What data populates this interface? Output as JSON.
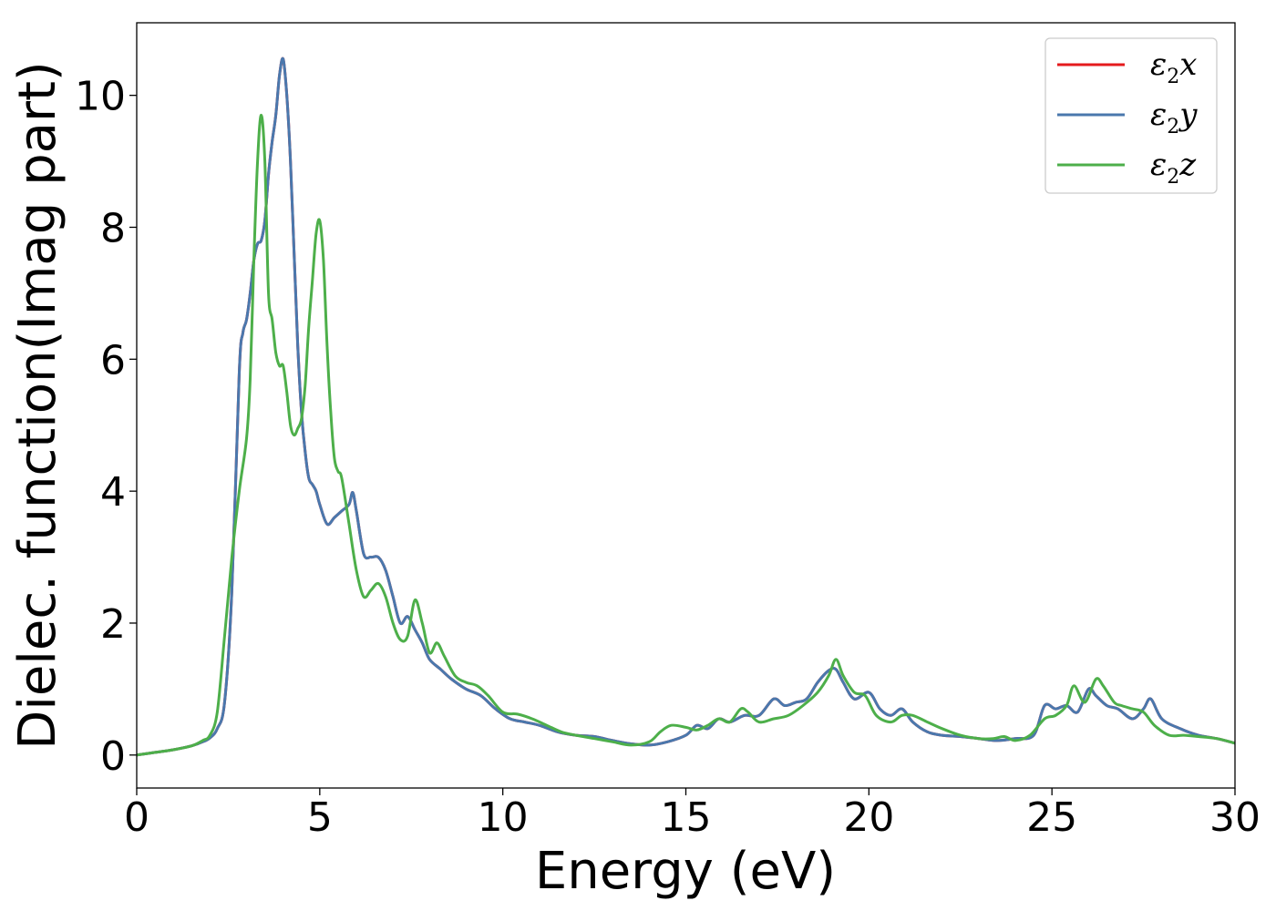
{
  "chart_data": {
    "type": "line",
    "title": "",
    "xlabel": "Energy (eV)",
    "ylabel": "Dielec. function(Imag part)",
    "xlim": [
      0,
      30
    ],
    "ylim": [
      -0.5,
      11.1
    ],
    "x_ticks": [
      0,
      5,
      10,
      15,
      20,
      25,
      30
    ],
    "y_ticks": [
      0,
      2,
      4,
      6,
      8,
      10
    ],
    "grid": false,
    "legend_position": "top-right",
    "series": [
      {
        "name": "ε2x",
        "legend_base": "ε",
        "legend_sub": "2",
        "legend_var": "x",
        "color": "#e41a1c",
        "x": [
          0,
          0.5,
          1.0,
          1.5,
          1.8,
          2.0,
          2.2,
          2.4,
          2.6,
          2.8,
          2.9,
          3.0,
          3.1,
          3.2,
          3.3,
          3.4,
          3.5,
          3.6,
          3.7,
          3.8,
          3.9,
          4.0,
          4.1,
          4.2,
          4.3,
          4.4,
          4.5,
          4.6,
          4.7,
          4.8,
          4.9,
          5.0,
          5.2,
          5.4,
          5.6,
          5.8,
          5.9,
          6.0,
          6.2,
          6.4,
          6.6,
          6.8,
          7.0,
          7.2,
          7.4,
          7.6,
          7.8,
          8.0,
          8.3,
          8.6,
          9.0,
          9.4,
          9.8,
          10.2,
          10.6,
          11.0,
          11.5,
          12.0,
          12.5,
          13.0,
          13.5,
          14.0,
          14.5,
          15.0,
          15.3,
          15.6,
          15.9,
          16.2,
          16.6,
          17.0,
          17.4,
          17.7,
          18.0,
          18.3,
          18.6,
          18.9,
          19.1,
          19.3,
          19.6,
          20.0,
          20.3,
          20.6,
          20.9,
          21.2,
          21.6,
          22.0,
          22.5,
          23.0,
          23.5,
          24.0,
          24.5,
          24.8,
          25.1,
          25.4,
          25.7,
          26.0,
          26.2,
          26.5,
          26.8,
          27.2,
          27.5,
          27.7,
          28.0,
          28.5,
          29.0,
          29.5,
          30.0
        ],
        "y": [
          0.0,
          0.04,
          0.08,
          0.14,
          0.2,
          0.26,
          0.4,
          0.8,
          2.5,
          5.8,
          6.4,
          6.6,
          7.0,
          7.5,
          7.75,
          7.8,
          8.1,
          8.8,
          9.3,
          9.7,
          10.3,
          10.55,
          10.0,
          9.0,
          7.6,
          6.2,
          5.2,
          4.6,
          4.2,
          4.1,
          4.0,
          3.8,
          3.5,
          3.6,
          3.7,
          3.8,
          3.98,
          3.7,
          3.05,
          3.0,
          3.0,
          2.8,
          2.4,
          2.0,
          2.1,
          1.9,
          1.7,
          1.45,
          1.3,
          1.15,
          1.0,
          0.9,
          0.7,
          0.55,
          0.5,
          0.45,
          0.35,
          0.3,
          0.28,
          0.22,
          0.17,
          0.15,
          0.2,
          0.3,
          0.45,
          0.4,
          0.55,
          0.5,
          0.6,
          0.6,
          0.85,
          0.75,
          0.8,
          0.85,
          1.1,
          1.28,
          1.3,
          1.1,
          0.85,
          0.95,
          0.7,
          0.6,
          0.7,
          0.5,
          0.35,
          0.3,
          0.28,
          0.25,
          0.22,
          0.25,
          0.3,
          0.75,
          0.7,
          0.75,
          0.65,
          1.0,
          0.9,
          0.75,
          0.7,
          0.55,
          0.7,
          0.85,
          0.55,
          0.4,
          0.3,
          0.25,
          0.18
        ]
      },
      {
        "name": "ε2y",
        "legend_base": "ε",
        "legend_sub": "2",
        "legend_var": "y",
        "color": "#4a78ad",
        "x": [
          0,
          0.5,
          1.0,
          1.5,
          1.8,
          2.0,
          2.2,
          2.4,
          2.6,
          2.8,
          2.9,
          3.0,
          3.1,
          3.2,
          3.3,
          3.4,
          3.5,
          3.6,
          3.7,
          3.8,
          3.9,
          4.0,
          4.1,
          4.2,
          4.3,
          4.4,
          4.5,
          4.6,
          4.7,
          4.8,
          4.9,
          5.0,
          5.2,
          5.4,
          5.6,
          5.8,
          5.9,
          6.0,
          6.2,
          6.4,
          6.6,
          6.8,
          7.0,
          7.2,
          7.4,
          7.6,
          7.8,
          8.0,
          8.3,
          8.6,
          9.0,
          9.4,
          9.8,
          10.2,
          10.6,
          11.0,
          11.5,
          12.0,
          12.5,
          13.0,
          13.5,
          14.0,
          14.5,
          15.0,
          15.3,
          15.6,
          15.9,
          16.2,
          16.6,
          17.0,
          17.4,
          17.7,
          18.0,
          18.3,
          18.6,
          18.9,
          19.1,
          19.3,
          19.6,
          20.0,
          20.3,
          20.6,
          20.9,
          21.2,
          21.6,
          22.0,
          22.5,
          23.0,
          23.5,
          24.0,
          24.5,
          24.8,
          25.1,
          25.4,
          25.7,
          26.0,
          26.2,
          26.5,
          26.8,
          27.2,
          27.5,
          27.7,
          28.0,
          28.5,
          29.0,
          29.5,
          30.0
        ],
        "y": [
          0.0,
          0.04,
          0.08,
          0.14,
          0.2,
          0.26,
          0.4,
          0.8,
          2.5,
          5.8,
          6.4,
          6.6,
          7.0,
          7.5,
          7.75,
          7.8,
          8.1,
          8.8,
          9.3,
          9.7,
          10.3,
          10.55,
          10.0,
          9.0,
          7.6,
          6.2,
          5.2,
          4.6,
          4.2,
          4.1,
          4.0,
          3.8,
          3.5,
          3.6,
          3.7,
          3.8,
          3.98,
          3.7,
          3.05,
          3.0,
          3.0,
          2.8,
          2.4,
          2.0,
          2.1,
          1.9,
          1.7,
          1.45,
          1.3,
          1.15,
          1.0,
          0.9,
          0.7,
          0.55,
          0.5,
          0.45,
          0.35,
          0.3,
          0.28,
          0.22,
          0.17,
          0.15,
          0.2,
          0.3,
          0.45,
          0.4,
          0.55,
          0.5,
          0.6,
          0.6,
          0.85,
          0.75,
          0.8,
          0.85,
          1.1,
          1.28,
          1.3,
          1.1,
          0.85,
          0.95,
          0.7,
          0.6,
          0.7,
          0.5,
          0.35,
          0.3,
          0.28,
          0.25,
          0.22,
          0.25,
          0.3,
          0.75,
          0.7,
          0.75,
          0.65,
          1.0,
          0.9,
          0.75,
          0.7,
          0.55,
          0.7,
          0.85,
          0.55,
          0.4,
          0.3,
          0.25,
          0.18
        ]
      },
      {
        "name": "ε2z",
        "legend_base": "ε",
        "legend_sub": "2",
        "legend_var": "z",
        "color": "#4daf4a",
        "x": [
          0,
          0.5,
          1.0,
          1.5,
          1.8,
          2.0,
          2.2,
          2.4,
          2.6,
          2.8,
          3.0,
          3.1,
          3.2,
          3.3,
          3.4,
          3.5,
          3.6,
          3.7,
          3.8,
          3.9,
          4.0,
          4.1,
          4.2,
          4.3,
          4.4,
          4.5,
          4.6,
          4.7,
          4.8,
          4.9,
          5.0,
          5.1,
          5.2,
          5.3,
          5.4,
          5.5,
          5.6,
          5.8,
          6.0,
          6.2,
          6.4,
          6.6,
          6.8,
          7.0,
          7.2,
          7.4,
          7.6,
          7.8,
          8.0,
          8.2,
          8.4,
          8.7,
          9.0,
          9.3,
          9.6,
          10.0,
          10.4,
          10.8,
          11.2,
          11.6,
          12.0,
          12.5,
          13.0,
          13.5,
          14.0,
          14.3,
          14.6,
          15.0,
          15.3,
          15.6,
          15.9,
          16.2,
          16.5,
          16.7,
          17.0,
          17.4,
          17.8,
          18.2,
          18.6,
          18.9,
          19.1,
          19.3,
          19.6,
          19.9,
          20.2,
          20.6,
          20.9,
          21.2,
          21.6,
          22.0,
          22.5,
          23.0,
          23.4,
          23.7,
          24.0,
          24.4,
          24.8,
          25.1,
          25.4,
          25.6,
          25.9,
          26.2,
          26.4,
          26.7,
          26.9,
          27.2,
          27.5,
          27.8,
          28.2,
          28.6,
          29.0,
          29.5,
          30.0
        ],
        "y": [
          0.0,
          0.04,
          0.08,
          0.14,
          0.22,
          0.3,
          0.65,
          1.8,
          3.0,
          4.0,
          4.8,
          5.7,
          7.5,
          9.0,
          9.7,
          9.0,
          7.0,
          6.6,
          6.1,
          5.9,
          5.9,
          5.5,
          5.0,
          4.85,
          4.95,
          5.1,
          5.6,
          6.5,
          7.2,
          7.9,
          8.1,
          7.5,
          6.2,
          5.2,
          4.5,
          4.3,
          4.2,
          3.5,
          2.8,
          2.4,
          2.5,
          2.6,
          2.4,
          2.0,
          1.75,
          1.8,
          2.35,
          2.0,
          1.55,
          1.7,
          1.5,
          1.2,
          1.1,
          1.05,
          0.9,
          0.65,
          0.62,
          0.55,
          0.45,
          0.35,
          0.3,
          0.25,
          0.2,
          0.15,
          0.2,
          0.35,
          0.45,
          0.42,
          0.38,
          0.45,
          0.55,
          0.5,
          0.7,
          0.65,
          0.5,
          0.55,
          0.6,
          0.75,
          0.95,
          1.2,
          1.45,
          1.2,
          0.95,
          0.9,
          0.6,
          0.5,
          0.6,
          0.6,
          0.5,
          0.4,
          0.3,
          0.25,
          0.25,
          0.28,
          0.22,
          0.3,
          0.55,
          0.6,
          0.75,
          1.05,
          0.8,
          1.15,
          1.05,
          0.8,
          0.75,
          0.7,
          0.65,
          0.45,
          0.3,
          0.3,
          0.28,
          0.25,
          0.18
        ]
      }
    ]
  }
}
